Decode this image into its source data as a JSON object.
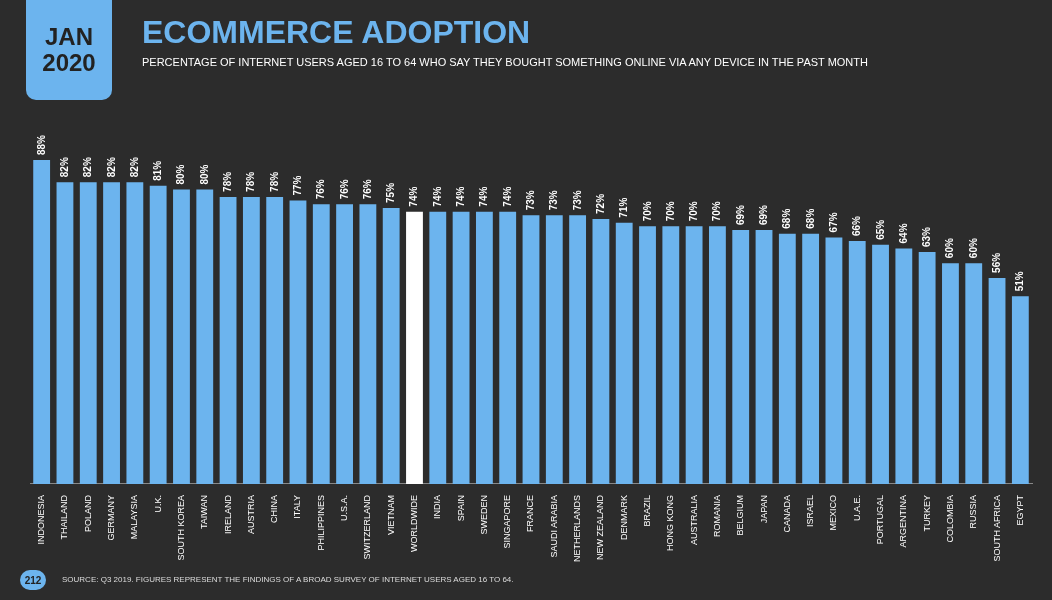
{
  "chart_data": {
    "type": "bar",
    "title": "ECOMMERCE ADOPTION",
    "subtitle": "PERCENTAGE OF INTERNET USERS AGED 16 TO 64 WHO SAY THEY BOUGHT SOMETHING ONLINE VIA ANY DEVICE IN THE PAST MONTH",
    "categories": [
      "INDONESIA",
      "THAILAND",
      "POLAND",
      "GERMANY",
      "MALAYSIA",
      "U.K.",
      "SOUTH KOREA",
      "TAIWAN",
      "IRELAND",
      "AUSTRIA",
      "CHINA",
      "ITALY",
      "PHILIPPINES",
      "U.S.A.",
      "SWITZERLAND",
      "VIETNAM",
      "WORLDWIDE",
      "INDIA",
      "SPAIN",
      "SWEDEN",
      "SINGAPORE",
      "FRANCE",
      "SAUDI ARABIA",
      "NETHERLANDS",
      "NEW ZEALAND",
      "DENMARK",
      "BRAZIL",
      "HONG KONG",
      "AUSTRALIA",
      "ROMANIA",
      "BELGIUM",
      "JAPAN",
      "CANADA",
      "ISRAEL",
      "MEXICO",
      "U.A.E.",
      "PORTUGAL",
      "ARGENTINA",
      "TURKEY",
      "COLOMBIA",
      "RUSSIA",
      "SOUTH AFRICA",
      "EGYPT"
    ],
    "values": [
      88,
      82,
      82,
      82,
      82,
      81,
      80,
      80,
      78,
      78,
      78,
      77,
      76,
      76,
      76,
      75,
      74,
      74,
      74,
      74,
      74,
      73,
      73,
      73,
      72,
      71,
      70,
      70,
      70,
      70,
      69,
      69,
      68,
      68,
      67,
      66,
      65,
      64,
      63,
      60,
      60,
      56,
      51
    ],
    "value_labels": [
      "88%",
      "82%",
      "82%",
      "82%",
      "82%",
      "81%",
      "80%",
      "80%",
      "78%",
      "78%",
      "78%",
      "77%",
      "76%",
      "76%",
      "76%",
      "75%",
      "74%",
      "74%",
      "74%",
      "74%",
      "74%",
      "73%",
      "73%",
      "73%",
      "72%",
      "71%",
      "70%",
      "70%",
      "70%",
      "70%",
      "69%",
      "69%",
      "68%",
      "68%",
      "67%",
      "66%",
      "65%",
      "64%",
      "63%",
      "60%",
      "60%",
      "56%",
      "51%"
    ],
    "colors": [
      "#6cb4ee",
      "#6cb4ee",
      "#6cb4ee",
      "#6cb4ee",
      "#6cb4ee",
      "#6cb4ee",
      "#6cb4ee",
      "#6cb4ee",
      "#6cb4ee",
      "#6cb4ee",
      "#6cb4ee",
      "#6cb4ee",
      "#6cb4ee",
      "#6cb4ee",
      "#6cb4ee",
      "#6cb4ee",
      "#ffffff",
      "#6cb4ee",
      "#6cb4ee",
      "#6cb4ee",
      "#6cb4ee",
      "#6cb4ee",
      "#6cb4ee",
      "#6cb4ee",
      "#6cb4ee",
      "#6cb4ee",
      "#6cb4ee",
      "#6cb4ee",
      "#6cb4ee",
      "#6cb4ee",
      "#6cb4ee",
      "#6cb4ee",
      "#6cb4ee",
      "#6cb4ee",
      "#6cb4ee",
      "#6cb4ee",
      "#6cb4ee",
      "#6cb4ee",
      "#6cb4ee",
      "#6cb4ee",
      "#6cb4ee",
      "#6cb4ee",
      "#6cb4ee"
    ],
    "annotations": [
      "JAN 2020",
      "SOURCE: Q3 2019. FIGURES REPRESENT THE FINDINGS OF A BROAD SURVEY OF INTERNET USERS AGED 16 TO 64.",
      "212"
    ],
    "legend": false,
    "tick_labels": "x"
  }
}
